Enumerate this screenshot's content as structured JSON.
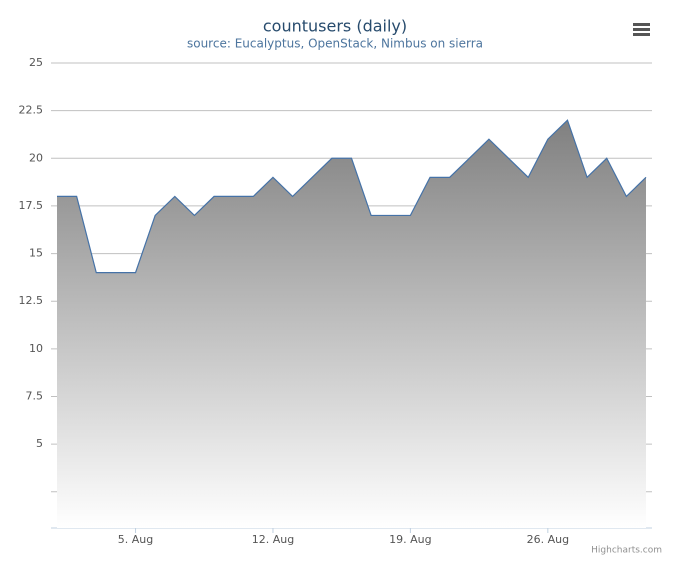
{
  "chart_data": {
    "type": "area",
    "title": "countusers (daily)",
    "subtitle": "source: Eucalyptus, OpenStack, Nimbus on sierra",
    "credits": "Highcharts.com",
    "x": [
      1,
      2,
      3,
      4,
      5,
      6,
      7,
      8,
      9,
      10,
      11,
      12,
      13,
      14,
      15,
      16,
      17,
      18,
      19,
      20,
      21,
      22,
      23,
      24,
      25,
      26,
      27,
      28,
      29,
      30,
      31
    ],
    "series": [
      {
        "name": "countusers",
        "color": "#4572a7",
        "values": [
          18,
          18,
          14,
          14,
          14,
          17,
          18,
          17,
          18,
          18,
          18,
          19,
          18,
          19,
          20,
          20,
          17,
          17,
          17,
          19,
          19,
          20,
          21,
          20,
          19,
          21,
          22,
          19,
          20,
          18,
          19
        ]
      }
    ],
    "xlim": [
      1,
      31
    ],
    "xticks": [
      {
        "value": 5,
        "label": "5. Aug"
      },
      {
        "value": 12,
        "label": "12. Aug"
      },
      {
        "value": 19,
        "label": "19. Aug"
      },
      {
        "value": 26,
        "label": "26. Aug"
      }
    ],
    "ylim": [
      0.6,
      25
    ],
    "yticks": [
      {
        "value": 2.5,
        "label": null
      },
      5,
      7.5,
      10,
      12.5,
      15,
      17.5,
      20,
      22.5,
      25
    ],
    "grid": true
  }
}
